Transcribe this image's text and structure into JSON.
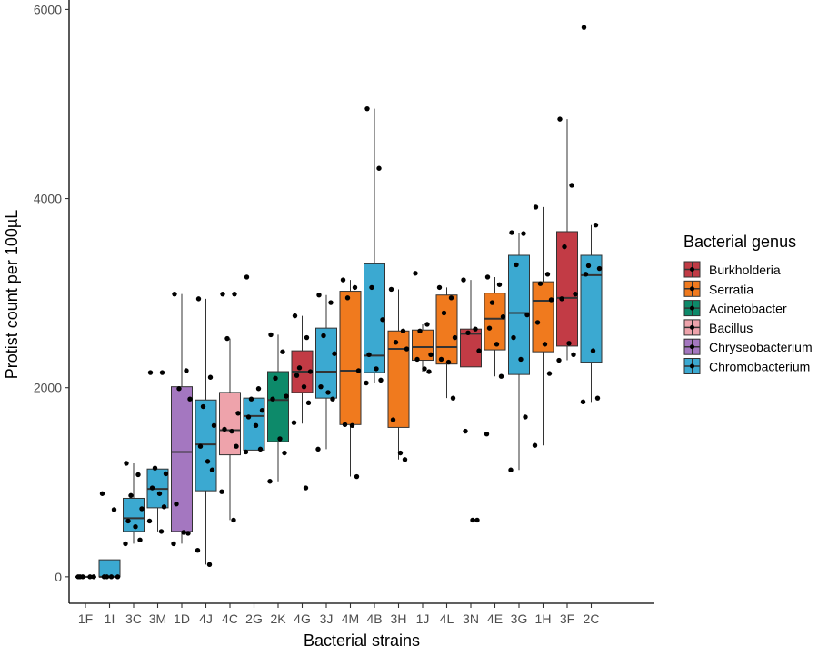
{
  "chart_data": {
    "type": "box",
    "xlabel": "Bacterial strains",
    "ylabel": "Protist count per 100µL",
    "ylim": [
      -280,
      6100
    ],
    "yticks": [
      0,
      2000,
      4000,
      6000
    ],
    "legend": {
      "title": "Bacterial genus",
      "placement": "right",
      "entries": [
        {
          "name": "Burkholderia",
          "color": "#c23b45"
        },
        {
          "name": "Serratia",
          "color": "#f07a1e"
        },
        {
          "name": "Acinetobacter",
          "color": "#0d8a6a"
        },
        {
          "name": "Bacillus",
          "color": "#eea3ab"
        },
        {
          "name": "Chryseobacterium",
          "color": "#a477c0"
        },
        {
          "name": "Chromobacterium",
          "color": "#3ba9d1"
        }
      ]
    },
    "categories": [
      "1F",
      "1I",
      "3C",
      "3M",
      "1D",
      "4J",
      "4C",
      "2G",
      "2K",
      "4G",
      "3J",
      "4M",
      "4B",
      "3H",
      "1J",
      "4L",
      "3N",
      "4E",
      "3G",
      "1H",
      "3F",
      "2C"
    ],
    "boxes": [
      {
        "strain": "1F",
        "genus": "Chromobacterium",
        "q1": 0,
        "median": 0,
        "q3": 0,
        "whisker_low": 0,
        "whisker_high": 0,
        "points": [
          0,
          0,
          0,
          0,
          0
        ]
      },
      {
        "strain": "1I",
        "genus": "Chromobacterium",
        "q1": 0,
        "median": 0,
        "q3": 180,
        "whisker_low": 0,
        "whisker_high": 180,
        "points": [
          880,
          710,
          0,
          0,
          0,
          0
        ]
      },
      {
        "strain": "3C",
        "genus": "Chromobacterium",
        "q1": 480,
        "median": 620,
        "q3": 830,
        "whisker_low": 350,
        "whisker_high": 1200,
        "points": [
          1200,
          1080,
          860,
          720,
          590,
          530,
          390,
          350
        ]
      },
      {
        "strain": "3M",
        "genus": "Chromobacterium",
        "q1": 730,
        "median": 930,
        "q3": 1140,
        "whisker_low": 480,
        "whisker_high": 1140,
        "points": [
          2160,
          2160,
          1150,
          1090,
          940,
          880,
          740,
          590,
          480
        ]
      },
      {
        "strain": "1D",
        "genus": "Chryseobacterium",
        "q1": 480,
        "median": 1320,
        "q3": 2010,
        "whisker_low": 350,
        "whisker_high": 2990,
        "points": [
          2990,
          2180,
          1990,
          1880,
          770,
          470,
          460,
          350
        ]
      },
      {
        "strain": "4J",
        "genus": "Chromobacterium",
        "q1": 910,
        "median": 1400,
        "q3": 1870,
        "whisker_low": 130,
        "whisker_high": 2940,
        "points": [
          2940,
          2110,
          1800,
          1600,
          1380,
          1220,
          1130,
          280,
          130
        ]
      },
      {
        "strain": "4C",
        "genus": "Bacillus",
        "q1": 1290,
        "median": 1550,
        "q3": 1950,
        "whisker_low": 600,
        "whisker_high": 2520,
        "points": [
          2990,
          2990,
          2520,
          1730,
          1560,
          1540,
          1380,
          900,
          600
        ]
      },
      {
        "strain": "2G",
        "genus": "Chromobacterium",
        "q1": 1340,
        "median": 1700,
        "q3": 1890,
        "whisker_low": 1320,
        "whisker_high": 1990,
        "points": [
          3170,
          1990,
          1880,
          1760,
          1690,
          1600,
          1350,
          1320
        ]
      },
      {
        "strain": "2K",
        "genus": "Acinetobacter",
        "q1": 1430,
        "median": 1870,
        "q3": 2170,
        "whisker_low": 1010,
        "whisker_high": 2560,
        "points": [
          2560,
          2380,
          2100,
          1910,
          1880,
          1460,
          1310,
          1010
        ]
      },
      {
        "strain": "4G",
        "genus": "Burkholderia",
        "q1": 1950,
        "median": 2170,
        "q3": 2390,
        "whisker_low": 1620,
        "whisker_high": 2760,
        "points": [
          2760,
          2530,
          2210,
          2170,
          2130,
          2010,
          1840,
          1630,
          940
        ]
      },
      {
        "strain": "3J",
        "genus": "Chromobacterium",
        "q1": 1890,
        "median": 2170,
        "q3": 2630,
        "whisker_low": 1350,
        "whisker_high": 2980,
        "points": [
          2980,
          2900,
          2550,
          2360,
          2010,
          1950,
          1880,
          1350
        ]
      },
      {
        "strain": "4M",
        "genus": "Serratia",
        "q1": 1610,
        "median": 2180,
        "q3": 3020,
        "whisker_low": 1060,
        "whisker_high": 3140,
        "points": [
          3140,
          3060,
          2950,
          2180,
          1610,
          1600,
          1060
        ]
      },
      {
        "strain": "4B",
        "genus": "Chromobacterium",
        "q1": 2160,
        "median": 2340,
        "q3": 3310,
        "whisker_low": 2050,
        "whisker_high": 4950,
        "points": [
          4950,
          4320,
          3060,
          2720,
          2350,
          2200,
          2080,
          2050
        ]
      },
      {
        "strain": "3H",
        "genus": "Serratia",
        "q1": 1580,
        "median": 2410,
        "q3": 2600,
        "whisker_low": 1240,
        "whisker_high": 3040,
        "points": [
          3040,
          2600,
          2480,
          2410,
          1660,
          1310,
          1240
        ]
      },
      {
        "strain": "1J",
        "genus": "Serratia",
        "q1": 2290,
        "median": 2430,
        "q3": 2610,
        "whisker_low": 2170,
        "whisker_high": 2670,
        "points": [
          3210,
          2670,
          2600,
          2350,
          2300,
          2200,
          2170
        ]
      },
      {
        "strain": "4L",
        "genus": "Serratia",
        "q1": 2250,
        "median": 2430,
        "q3": 2980,
        "whisker_low": 1890,
        "whisker_high": 3060,
        "points": [
          3060,
          2950,
          2790,
          2530,
          2300,
          2270,
          1890
        ]
      },
      {
        "strain": "3N",
        "genus": "Burkholderia",
        "q1": 2220,
        "median": 2570,
        "q3": 2620,
        "whisker_low": 2220,
        "whisker_high": 3140,
        "points": [
          3140,
          2620,
          2580,
          2390,
          1540,
          600,
          600
        ]
      },
      {
        "strain": "4E",
        "genus": "Serratia",
        "q1": 2400,
        "median": 2730,
        "q3": 3000,
        "whisker_low": 2120,
        "whisker_high": 3170,
        "points": [
          3170,
          3090,
          2900,
          2750,
          2630,
          2460,
          2120,
          1510
        ]
      },
      {
        "strain": "3G",
        "genus": "Chromobacterium",
        "q1": 2140,
        "median": 2790,
        "q3": 3400,
        "whisker_low": 1130,
        "whisker_high": 3640,
        "points": [
          3640,
          3630,
          3300,
          2770,
          2530,
          2300,
          1690,
          1130
        ]
      },
      {
        "strain": "1H",
        "genus": "Serratia",
        "q1": 2380,
        "median": 2920,
        "q3": 3120,
        "whisker_low": 1390,
        "whisker_high": 3910,
        "points": [
          3910,
          3200,
          3100,
          2930,
          2690,
          2460,
          2150,
          1390
        ]
      },
      {
        "strain": "3F",
        "genus": "Burkholderia",
        "q1": 2440,
        "median": 2950,
        "q3": 3650,
        "whisker_low": 2290,
        "whisker_high": 4840,
        "points": [
          4840,
          4140,
          3490,
          2990,
          2940,
          2470,
          2350,
          2290
        ]
      },
      {
        "strain": "2C",
        "genus": "Chromobacterium",
        "q1": 2270,
        "median": 3190,
        "q3": 3400,
        "whisker_low": 1850,
        "whisker_high": 3720,
        "points": [
          5810,
          3720,
          3290,
          3260,
          3200,
          2390,
          1890,
          1850
        ]
      }
    ]
  }
}
